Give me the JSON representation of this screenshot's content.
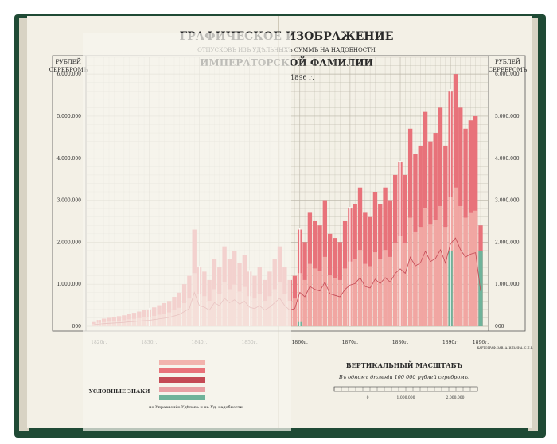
{
  "colors": {
    "cover": "#1f4a35",
    "paper": "#f3f0e6",
    "grid": "#b9b4a6",
    "series_main": "#e8727a",
    "series_light": "#f2b3ad",
    "series_dark": "#c44a55",
    "series_green": "#6fb39a",
    "overlay": "#f7f5ef"
  },
  "header": {
    "title": "ГРАФИЧЕСКОЕ ИЗОБРАЖЕНИЕ",
    "subtitle": "ОТПУСКОВЪ ИЗЪ УДѢЛЬНЫХЪ СУММЪ НА НАДОБНОСТИ",
    "family": "ИМПЕРАТОРСКОЙ ФАМИЛИИ",
    "year_line": "1896 г."
  },
  "left_axis": {
    "unit_line1": "РУБЛЕЙ",
    "unit_line2": "СЕРЕБРОМЪ"
  },
  "right_axis": {
    "unit_line1": "РУБЛЕЙ",
    "unit_line2": "СЕРЕБРОМЪ"
  },
  "scale_box": {
    "title": "ВЕРТИКАЛЬНЫЙ МАСШТАБЪ",
    "subtitle": "Въ одномъ дѣленіи 100 000 рублей серебромъ.",
    "ticks": [
      "0",
      "1.000.000",
      "2.000.000"
    ]
  },
  "legend": {
    "title": "УСЛОВНЫЕ ЗНАКИ",
    "footer": "по Управленію Удѣловъ и на Уд. надобности"
  },
  "publisher": "КАРТОГРАФ. ЗАВ. А. ИЛЬИНА, С.П.Б.",
  "chart_data": {
    "type": "bar",
    "title": "ГРАФИЧЕСКОЕ ИЗОБРАЖЕНИЕ",
    "ylabel": "РУБЛЕЙ СЕРЕБРОМЪ",
    "ylim": [
      0,
      6400000
    ],
    "yticks": [
      0,
      1000000,
      2000000,
      3000000,
      4000000,
      5000000,
      6000000
    ],
    "ytick_labels": [
      "000",
      "1.000.000",
      "2.000.000",
      "3.000.000",
      "4.000.000",
      "5.000.000",
      "6.000.000"
    ],
    "ytick_labels_left": [
      "000",
      "1.000.000",
      "2.000.000",
      "3.000.000",
      "4.000.000",
      "5.000.000",
      "6.000.000"
    ],
    "decade_labels": [
      "1820г.",
      "1830г.",
      "1840г.",
      "1850г.",
      "1860г.",
      "1870г.",
      "1880г.",
      "1890г.",
      "1896г."
    ],
    "x": [
      1819,
      1820,
      1821,
      1822,
      1823,
      1824,
      1825,
      1826,
      1827,
      1828,
      1829,
      1830,
      1831,
      1832,
      1833,
      1834,
      1835,
      1836,
      1837,
      1838,
      1839,
      1840,
      1841,
      1842,
      1843,
      1844,
      1845,
      1846,
      1847,
      1848,
      1849,
      1850,
      1851,
      1852,
      1853,
      1854,
      1855,
      1856,
      1857,
      1858,
      1859,
      1860,
      1861,
      1862,
      1863,
      1864,
      1865,
      1866,
      1867,
      1868,
      1869,
      1870,
      1871,
      1872,
      1873,
      1874,
      1875,
      1876,
      1877,
      1878,
      1879,
      1880,
      1881,
      1882,
      1883,
      1884,
      1885,
      1886,
      1887,
      1888,
      1889,
      1890,
      1891,
      1892,
      1893,
      1894,
      1895,
      1896
    ],
    "series": [
      {
        "values": [
          100000,
          150000,
          180000,
          200000,
          220000,
          240000,
          260000,
          300000,
          320000,
          350000,
          380000,
          400000,
          450000,
          500000,
          550000,
          600000,
          700000,
          800000,
          1000000,
          1200000,
          2300000,
          1400000,
          1300000,
          1100000,
          1600000,
          1400000,
          1900000,
          1600000,
          1800000,
          1500000,
          1700000,
          1300000,
          1200000,
          1400000,
          1100000,
          1300000,
          1600000,
          1900000,
          1400000,
          1100000,
          1200000,
          2300000,
          2000000,
          2700000,
          2500000,
          2400000,
          3000000,
          2200000,
          2100000,
          2000000,
          2500000,
          2800000,
          2900000,
          3300000,
          2700000,
          2600000,
          3200000,
          2900000,
          3300000,
          3000000,
          3600000,
          3900000,
          3600000,
          4700000,
          4100000,
          4300000,
          5100000,
          4400000,
          4600000,
          5200000,
          4300000,
          5600000,
          6000000,
          5200000,
          4700000,
          4900000,
          5000000,
          2400000
        ]
      },
      {
        "values": [
          0,
          0,
          0,
          0,
          0,
          0,
          0,
          0,
          0,
          0,
          0,
          0,
          0,
          0,
          0,
          0,
          0,
          0,
          0,
          0,
          0,
          0,
          0,
          0,
          0,
          0,
          0,
          0,
          0,
          0,
          0,
          0,
          0,
          0,
          0,
          0,
          0,
          0,
          0,
          0,
          0,
          100000,
          0,
          0,
          0,
          0,
          0,
          0,
          0,
          0,
          0,
          0,
          0,
          0,
          0,
          0,
          0,
          0,
          0,
          0,
          0,
          0,
          0,
          0,
          0,
          0,
          0,
          0,
          0,
          0,
          0,
          1800000,
          0,
          0,
          0,
          0,
          0,
          1800000
        ]
      }
    ]
  }
}
